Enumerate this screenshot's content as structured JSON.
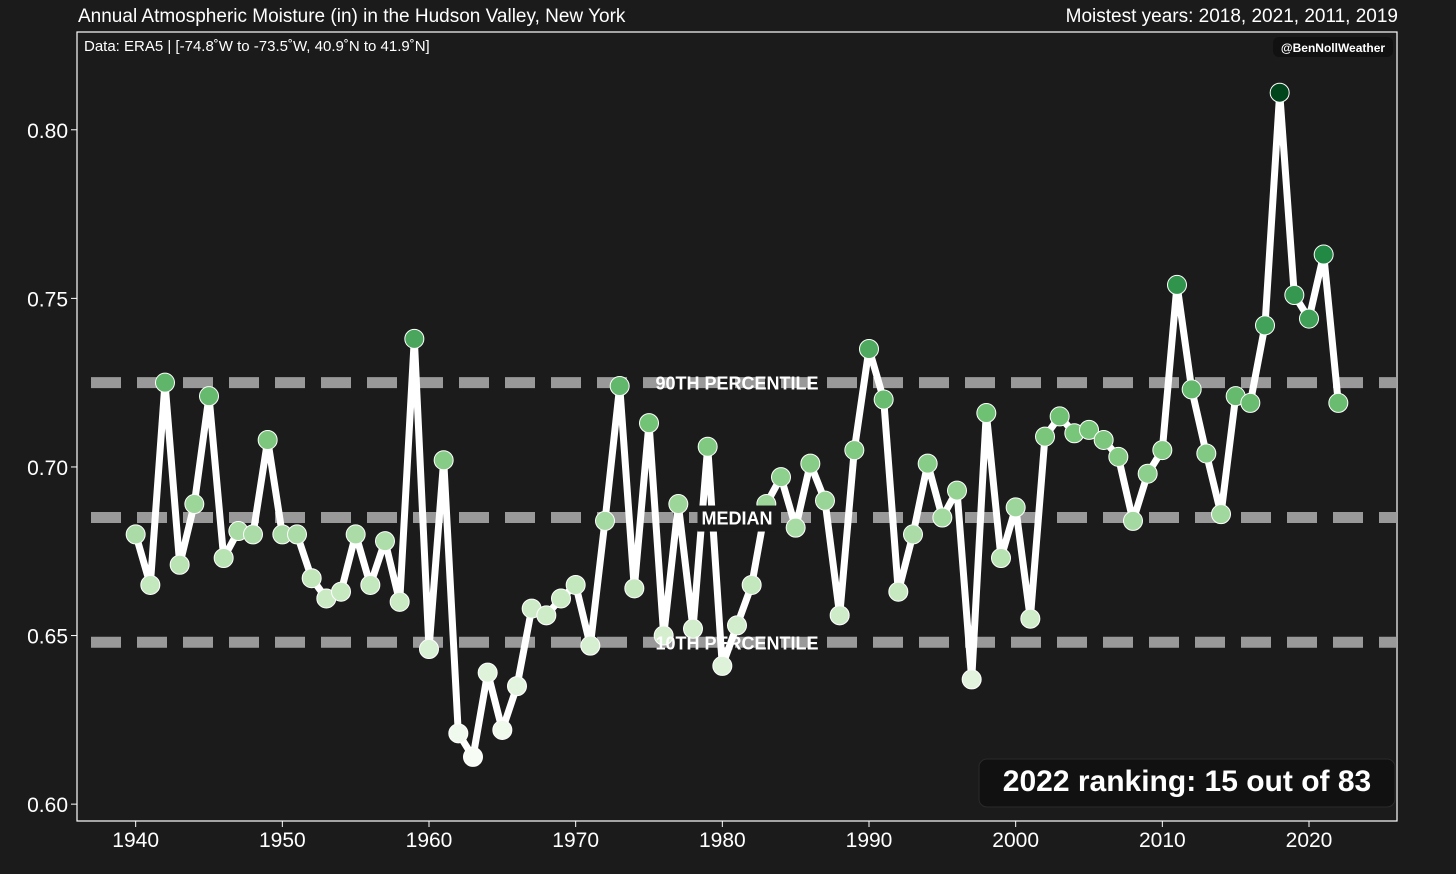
{
  "header": {
    "title": "Annual Atmospheric Moisture (in) in the Hudson Valley, New York",
    "moistest": "Moistest years: 2018, 2021, 2011, 2019"
  },
  "chart_data": {
    "type": "line",
    "subtitle": "Data: ERA5 | [-74.8˚W to -73.5˚W, 40.9˚N to 41.9˚N]",
    "credit": "@BenNollWeather",
    "ranking": "2022 ranking: 15 out of 83",
    "xlabel": "",
    "ylabel": "",
    "xlim": [
      1936,
      2026
    ],
    "ylim": [
      0.595,
      0.829
    ],
    "x_ticks": [
      1940,
      1950,
      1960,
      1970,
      1980,
      1990,
      2000,
      2010,
      2020
    ],
    "y_ticks": [
      0.6,
      0.65,
      0.7,
      0.75,
      0.8
    ],
    "y_tick_labels": [
      "0.60",
      "0.65",
      "0.70",
      "0.75",
      "0.80"
    ],
    "reference_lines": [
      {
        "label": "90TH PERCENTILE",
        "value": 0.725
      },
      {
        "label": "MEDIAN",
        "value": 0.685
      },
      {
        "label": "10TH PERCENTILE",
        "value": 0.648
      }
    ],
    "series": [
      {
        "x": [
          1940,
          1941,
          1942,
          1943,
          1944,
          1945,
          1946,
          1947,
          1948,
          1949,
          1950,
          1951,
          1952,
          1953,
          1954,
          1955,
          1956,
          1957,
          1958,
          1959,
          1960,
          1961,
          1962,
          1963,
          1964,
          1965,
          1966,
          1967,
          1968,
          1969,
          1970,
          1971,
          1972,
          1973,
          1974,
          1975,
          1976,
          1977,
          1978,
          1979,
          1980,
          1981,
          1982,
          1983,
          1984,
          1985,
          1986,
          1987,
          1988,
          1989,
          1990,
          1991,
          1992,
          1993,
          1994,
          1995,
          1996,
          1997,
          1998,
          1999,
          2000,
          2001,
          2002,
          2003,
          2004,
          2005,
          2006,
          2007,
          2008,
          2009,
          2010,
          2011,
          2012,
          2013,
          2014,
          2015,
          2016,
          2017,
          2018,
          2019,
          2020,
          2021,
          2022
        ],
        "values": [
          0.68,
          0.665,
          0.725,
          0.671,
          0.689,
          0.721,
          0.673,
          0.681,
          0.68,
          0.708,
          0.68,
          0.68,
          0.667,
          0.661,
          0.663,
          0.68,
          0.665,
          0.678,
          0.66,
          0.738,
          0.646,
          0.702,
          0.621,
          0.614,
          0.639,
          0.622,
          0.635,
          0.658,
          0.656,
          0.661,
          0.665,
          0.647,
          0.684,
          0.724,
          0.664,
          0.713,
          0.65,
          0.689,
          0.652,
          0.706,
          0.641,
          0.653,
          0.665,
          0.689,
          0.697,
          0.682,
          0.701,
          0.69,
          0.656,
          0.705,
          0.735,
          0.72,
          0.663,
          0.68,
          0.701,
          0.685,
          0.693,
          0.637,
          0.716,
          0.673,
          0.688,
          0.655,
          0.709,
          0.715,
          0.71,
          0.711,
          0.708,
          0.703,
          0.684,
          0.698,
          0.705,
          0.754,
          0.723,
          0.704,
          0.686,
          0.721,
          0.719,
          0.742,
          0.811,
          0.751,
          0.744,
          0.763,
          0.719
        ]
      }
    ],
    "marker_colormap": [
      "#f7fcf5",
      "#c7e9c0",
      "#74c476",
      "#238b45",
      "#00441b"
    ],
    "line_color": "#ffffff",
    "reference_line_color": "#a0a0a0",
    "background": "#1b1b1b",
    "grid": false
  }
}
